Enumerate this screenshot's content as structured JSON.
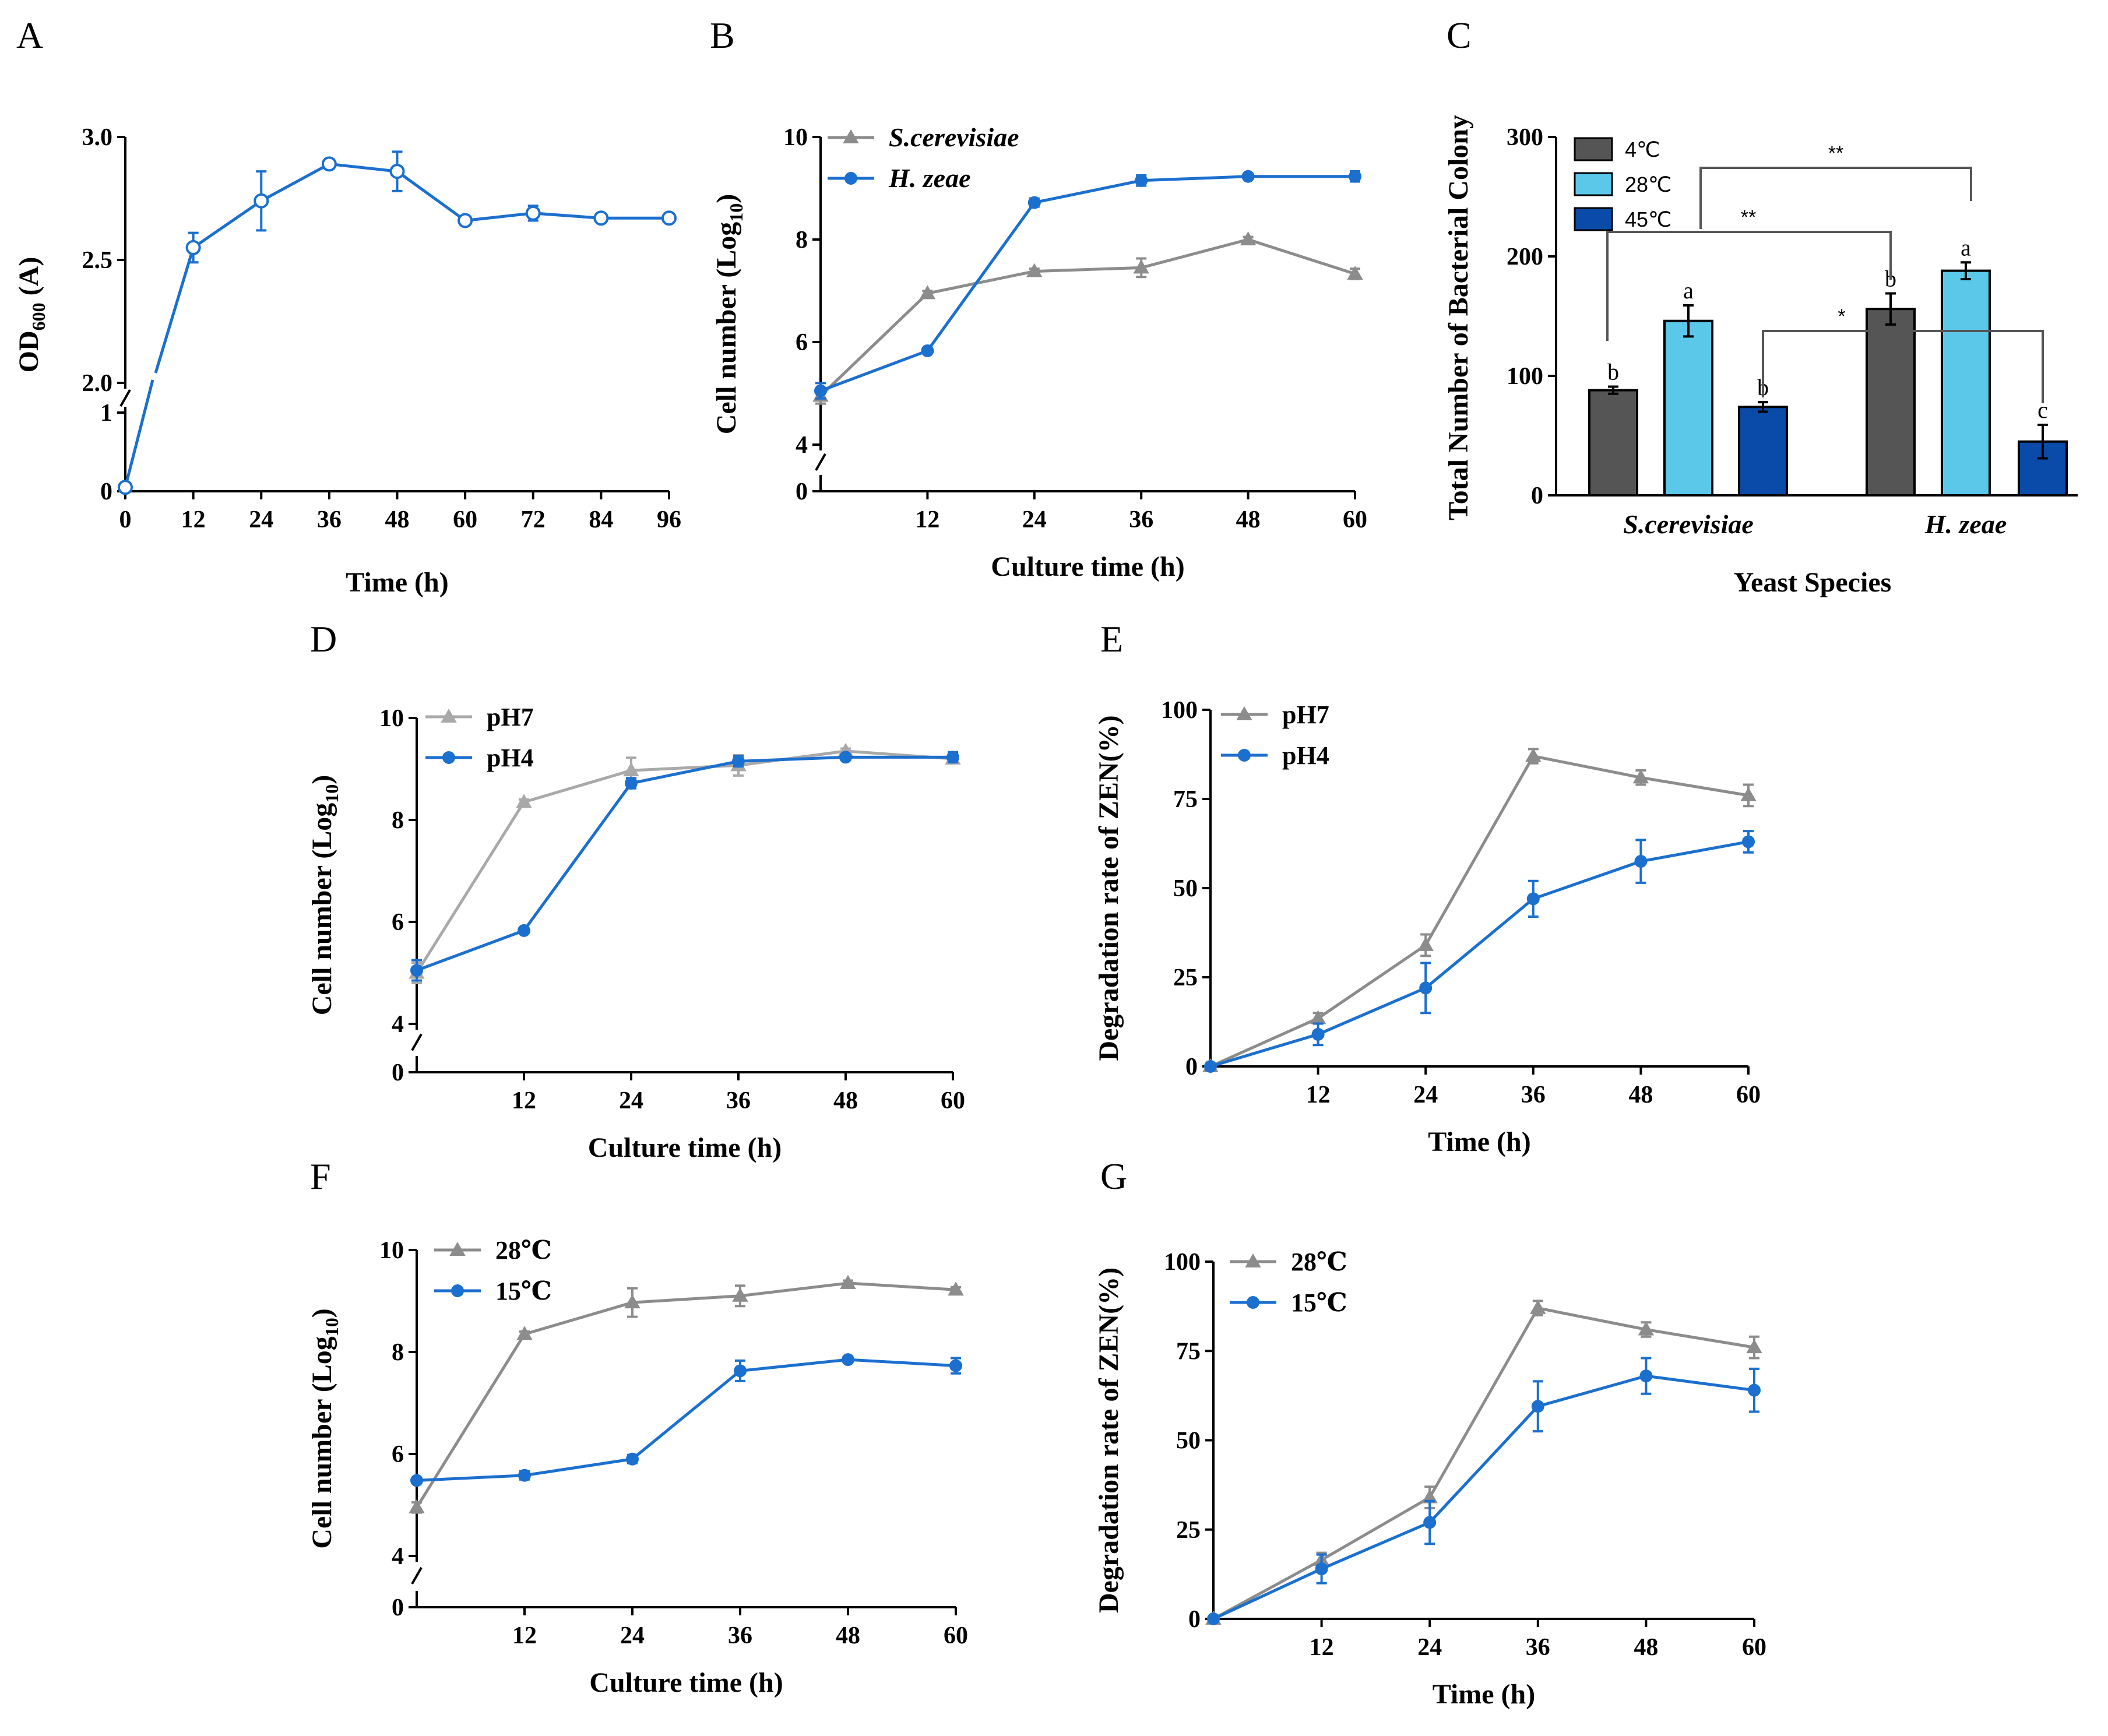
{
  "colors": {
    "blue": "#1b6fce",
    "gray": "#8c8c8c",
    "lightgray": "#a9a9a9",
    "dark": "#555555",
    "light_blue": "#5bc8ea",
    "navy": "#0a4aa8"
  },
  "chart_data": [
    {
      "id": "A",
      "panel_letter": "A",
      "type": "line",
      "xlabel": "Time (h)",
      "ylabel": "OD600 (A)",
      "ylabel_main": "OD",
      "ylabel_sub": "600",
      "ylabel_tail": " (A)",
      "x_ticks": [
        "0",
        "12",
        "24",
        "36",
        "48",
        "60",
        "72",
        "84",
        "96"
      ],
      "y_ticks_upper": [
        "2.0",
        "2.5",
        "3.0"
      ],
      "y_ticks_lower": [
        "0",
        "1"
      ],
      "axis_break": {
        "lower": [
          0,
          1
        ],
        "upper": [
          2.0,
          3.0
        ]
      },
      "series": [
        {
          "name": "OD600",
          "marker": "open-circle",
          "x": [
            0,
            12,
            24,
            36,
            48,
            60,
            72,
            84,
            96
          ],
          "y": [
            0.05,
            2.55,
            2.74,
            2.89,
            2.86,
            2.66,
            2.69,
            2.67,
            2.67
          ],
          "err": [
            0,
            0.06,
            0.12,
            0.02,
            0.08,
            0.01,
            0.03,
            0.01,
            0.01
          ]
        }
      ]
    },
    {
      "id": "B",
      "panel_letter": "B",
      "type": "line",
      "xlabel": "Culture time (h)",
      "ylabel": "Cell number (Log10)",
      "ylabel_main": "Cell number (Log",
      "ylabel_sub": "10",
      "ylabel_tail": ")",
      "x_ticks": [
        "12",
        "24",
        "36",
        "48",
        "60"
      ],
      "y_ticks_upper": [
        "4",
        "6",
        "8",
        "10"
      ],
      "y_ticks_lower": [
        "0"
      ],
      "axis_break": {
        "lower": [
          0,
          0
        ],
        "upper": [
          4,
          10
        ]
      },
      "legend": [
        "S.cerevisiae",
        "H. zeae"
      ],
      "series": [
        {
          "name": "S.cerevisiae",
          "marker": "triangle",
          "x": [
            0,
            12,
            24,
            36,
            48,
            60
          ],
          "y": [
            4.95,
            6.95,
            7.38,
            7.45,
            8.0,
            7.33
          ],
          "err": [
            0.15,
            0.05,
            0.05,
            0.18,
            0.05,
            0.1
          ]
        },
        {
          "name": "H. zeae",
          "marker": "circle",
          "x": [
            0,
            12,
            24,
            36,
            48,
            60
          ],
          "y": [
            5.05,
            5.83,
            8.72,
            9.15,
            9.23,
            9.23
          ],
          "err": [
            0.15,
            0.05,
            0.08,
            0.1,
            0.03,
            0.1
          ]
        }
      ]
    },
    {
      "id": "C",
      "panel_letter": "C",
      "type": "bar",
      "xlabel": "Yeast Species",
      "ylabel": "Total Number of Bacterial Colony",
      "categories": [
        "S.cerevisiae",
        "H. zeae"
      ],
      "y_ticks": [
        "0",
        "100",
        "200",
        "300"
      ],
      "ylim": [
        0,
        300
      ],
      "legend": [
        "4℃",
        "28℃",
        "45℃"
      ],
      "series": [
        {
          "name": "4℃",
          "values": [
            88,
            156
          ],
          "err": [
            3,
            13
          ],
          "letters": [
            "b",
            "b"
          ]
        },
        {
          "name": "28℃",
          "values": [
            146,
            188
          ],
          "err": [
            13,
            7
          ],
          "letters": [
            "a",
            "a"
          ]
        },
        {
          "name": "45℃",
          "values": [
            74,
            45
          ],
          "err": [
            4,
            14
          ],
          "letters": [
            "b",
            "c"
          ]
        }
      ],
      "annotations": [
        "**",
        "**",
        "*"
      ]
    },
    {
      "id": "D",
      "panel_letter": "D",
      "type": "line",
      "xlabel": "Culture time (h)",
      "ylabel": "Cell number (Log10)",
      "ylabel_main": "Cell number (Log",
      "ylabel_sub": "10",
      "ylabel_tail": ")",
      "x_ticks": [
        "12",
        "24",
        "36",
        "48",
        "60"
      ],
      "y_ticks_upper": [
        "4",
        "6",
        "8",
        "10"
      ],
      "y_ticks_lower": [
        "0"
      ],
      "axis_break": {
        "lower": [
          0,
          0
        ],
        "upper": [
          4,
          10
        ]
      },
      "legend": [
        "pH7",
        "pH4"
      ],
      "series": [
        {
          "name": "pH7",
          "marker": "triangle",
          "x": [
            0,
            12,
            24,
            36,
            48,
            60
          ],
          "y": [
            5.0,
            8.35,
            8.97,
            9.07,
            9.35,
            9.2
          ],
          "err": [
            0.2,
            0.05,
            0.25,
            0.2,
            0.05,
            0.05
          ]
        },
        {
          "name": "pH4",
          "marker": "circle",
          "x": [
            0,
            12,
            24,
            36,
            48,
            60
          ],
          "y": [
            5.05,
            5.83,
            8.72,
            9.15,
            9.23,
            9.23
          ],
          "err": [
            0.2,
            0.05,
            0.1,
            0.1,
            0.03,
            0.1
          ]
        }
      ]
    },
    {
      "id": "E",
      "panel_letter": "E",
      "type": "line",
      "xlabel": "Time (h)",
      "ylabel": "Degradation rate of ZEN(%)",
      "x_ticks": [
        "12",
        "24",
        "36",
        "48",
        "60"
      ],
      "y_ticks": [
        "0",
        "25",
        "50",
        "75",
        "100"
      ],
      "ylim": [
        0,
        100
      ],
      "legend": [
        "pH7",
        "pH4"
      ],
      "series": [
        {
          "name": "pH7",
          "marker": "triangle",
          "x": [
            0,
            12,
            24,
            36,
            48,
            60
          ],
          "y": [
            0,
            13.5,
            34,
            87,
            81,
            76
          ],
          "err": [
            0,
            1.5,
            3,
            2,
            2,
            3
          ]
        },
        {
          "name": "pH4",
          "marker": "circle",
          "x": [
            0,
            12,
            24,
            36,
            48,
            60
          ],
          "y": [
            0,
            9,
            22,
            47,
            57.5,
            63
          ],
          "err": [
            0,
            3,
            7,
            5,
            6,
            3
          ]
        }
      ]
    },
    {
      "id": "F",
      "panel_letter": "F",
      "type": "line",
      "xlabel": "Culture time (h)",
      "ylabel": "Cell number (Log10)",
      "ylabel_main": "Cell number (Log",
      "ylabel_sub": "10",
      "ylabel_tail": ")",
      "x_ticks": [
        "12",
        "24",
        "36",
        "48",
        "60"
      ],
      "y_ticks_upper": [
        "4",
        "6",
        "8",
        "10"
      ],
      "y_ticks_lower": [
        "0"
      ],
      "axis_break": {
        "lower": [
          0,
          0
        ],
        "upper": [
          4,
          10
        ]
      },
      "legend": [
        "28℃",
        "15℃"
      ],
      "series": [
        {
          "name": "28℃",
          "marker": "triangle",
          "x": [
            0,
            12,
            24,
            36,
            48,
            60
          ],
          "y": [
            4.95,
            8.35,
            8.97,
            9.1,
            9.35,
            9.22
          ],
          "err": [
            0.1,
            0.05,
            0.28,
            0.2,
            0.05,
            0.05
          ]
        },
        {
          "name": "15℃",
          "marker": "circle",
          "x": [
            0,
            12,
            24,
            36,
            48,
            60
          ],
          "y": [
            5.48,
            5.58,
            5.9,
            7.63,
            7.85,
            7.73
          ],
          "err": [
            0.05,
            0.08,
            0.08,
            0.2,
            0.05,
            0.15
          ]
        }
      ]
    },
    {
      "id": "G",
      "panel_letter": "G",
      "type": "line",
      "xlabel": "Time (h)",
      "ylabel": "Degradation rate of ZEN(%)",
      "x_ticks": [
        "12",
        "24",
        "36",
        "48",
        "60"
      ],
      "y_ticks": [
        "0",
        "25",
        "50",
        "75",
        "100"
      ],
      "ylim": [
        0,
        100
      ],
      "legend": [
        "28℃",
        "15℃"
      ],
      "series": [
        {
          "name": "28℃",
          "marker": "triangle",
          "x": [
            0,
            12,
            24,
            36,
            48,
            60
          ],
          "y": [
            0,
            16.5,
            34,
            87,
            81,
            76
          ],
          "err": [
            0,
            2,
            3,
            2,
            2,
            3
          ]
        },
        {
          "name": "15℃",
          "marker": "circle",
          "x": [
            0,
            12,
            24,
            36,
            48,
            60
          ],
          "y": [
            0,
            14,
            27,
            59.5,
            68,
            64
          ],
          "err": [
            0,
            4,
            6,
            7,
            5,
            6
          ]
        }
      ]
    }
  ]
}
